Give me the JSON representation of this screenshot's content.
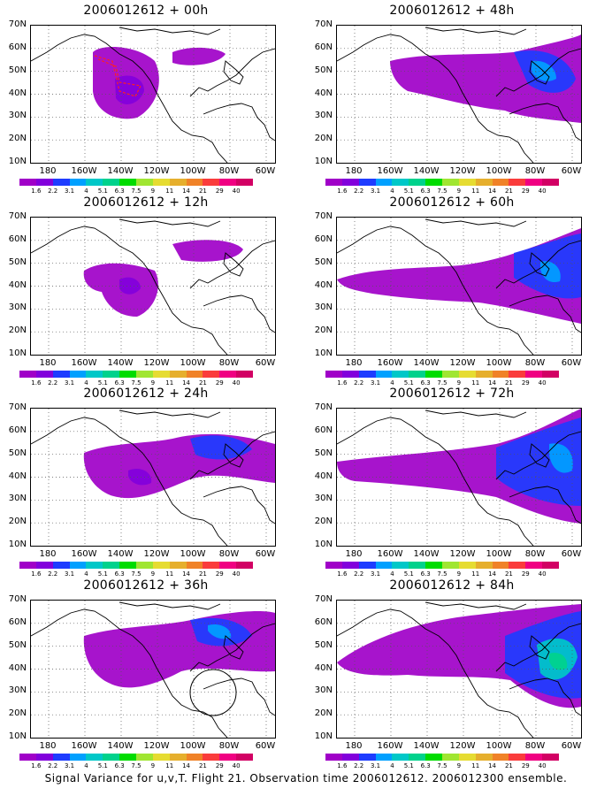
{
  "panels": [
    {
      "title": "2006012612 + 00h"
    },
    {
      "title": "2006012612 + 48h"
    },
    {
      "title": "2006012612 + 12h"
    },
    {
      "title": "2006012612 + 60h"
    },
    {
      "title": "2006012612 + 24h"
    },
    {
      "title": "2006012612 + 72h"
    },
    {
      "title": "2006012612 + 36h"
    },
    {
      "title": "2006012612 + 84h"
    }
  ],
  "axes": {
    "lat_labels": [
      "70N",
      "60N",
      "50N",
      "40N",
      "30N",
      "20N",
      "10N"
    ],
    "lon_labels": [
      "180",
      "160W",
      "140W",
      "120W",
      "100W",
      "80W",
      "60W"
    ],
    "lat_range": [
      10,
      70
    ],
    "lon_range": [
      "170E",
      "60W"
    ]
  },
  "colorbar": {
    "levels": [
      "1.6",
      "2.2",
      "3.1",
      "4",
      "5.1",
      "6.3",
      "7.5",
      "9",
      "11",
      "14",
      "21",
      "29",
      "40"
    ],
    "colors": [
      "#a000c8",
      "#8200dc",
      "#1e3cff",
      "#00a0ff",
      "#00c8c8",
      "#00d28c",
      "#00dc00",
      "#a0e632",
      "#e6dc32",
      "#e6af2d",
      "#f08228",
      "#fa3c3c",
      "#f00082",
      "#d20064"
    ]
  },
  "caption": "Signal Variance for u,v,T. Flight 21. Observation time 2006012612. 2006012300 ensemble."
}
